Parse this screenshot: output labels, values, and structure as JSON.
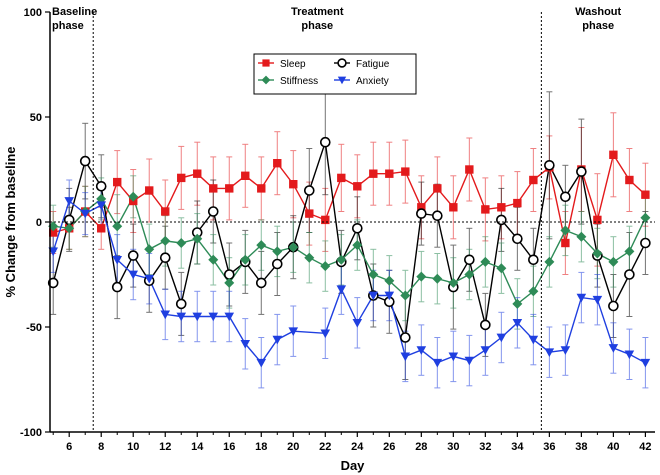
{
  "chart_data": {
    "type": "line",
    "xlabel": "Day",
    "ylabel": "% Change from baseline",
    "xlim": [
      4.8,
      42.6
    ],
    "ylim": [
      -100,
      100
    ],
    "yticks": [
      -100,
      -50,
      0,
      50,
      100
    ],
    "xticks": [
      6,
      8,
      10,
      12,
      14,
      16,
      18,
      20,
      22,
      24,
      26,
      28,
      30,
      32,
      34,
      36,
      38,
      40,
      42
    ],
    "phases": [
      {
        "label_line1": "Baseline",
        "label_line2": "phase",
        "start": 4.8,
        "end": 7.5
      },
      {
        "label_line1": "Treatment",
        "label_line2": "phase",
        "start": 7.5,
        "end": 35.5
      },
      {
        "label_line1": "Washout",
        "label_line2": "phase",
        "start": 35.5,
        "end": 42.6
      }
    ],
    "phase_boundaries": [
      7.5,
      35.5
    ],
    "zero_line": true,
    "legend_position": "top-center",
    "x": [
      5,
      6,
      7,
      8,
      9,
      10,
      11,
      12,
      13,
      14,
      15,
      16,
      17,
      18,
      19,
      20,
      21,
      22,
      23,
      24,
      25,
      26,
      27,
      28,
      29,
      30,
      31,
      32,
      33,
      34,
      35,
      36,
      37,
      38,
      39,
      40,
      41,
      42
    ],
    "series": [
      {
        "name": "Sleep",
        "marker": "square",
        "color": "#e31a1c",
        "values": [
          -5,
          -3,
          5,
          -3,
          19,
          10,
          15,
          5,
          21,
          23,
          16,
          16,
          22,
          16,
          28,
          18,
          4,
          1,
          21,
          17,
          23,
          23,
          24,
          7,
          16,
          7,
          25,
          6,
          7,
          9,
          20,
          26,
          -10,
          25,
          1,
          32,
          20,
          13
        ],
        "errors": [
          10,
          10,
          12,
          10,
          15,
          15,
          15,
          15,
          15,
          15,
          15,
          15,
          15,
          15,
          15,
          16,
          15,
          15,
          16,
          15,
          15,
          15,
          15,
          15,
          15,
          15,
          15,
          15,
          15,
          15,
          15,
          15,
          15,
          20,
          22,
          20,
          15,
          15
        ]
      },
      {
        "name": "Fatigue",
        "marker": "circle-open",
        "color": "#000000",
        "values": [
          -29,
          1,
          29,
          17,
          -31,
          -16,
          -28,
          -17,
          -39,
          -5,
          5,
          -25,
          -19,
          -29,
          -20,
          -12,
          15,
          38,
          -19,
          -3,
          -35,
          -38,
          -55,
          4,
          3,
          -31,
          -18,
          -49,
          1,
          -8,
          -18,
          27,
          12,
          24,
          -16,
          -40,
          -25,
          -10
        ],
        "errors": [
          15,
          15,
          18,
          15,
          15,
          15,
          15,
          15,
          15,
          15,
          15,
          15,
          15,
          15,
          15,
          15,
          20,
          25,
          15,
          15,
          15,
          15,
          20,
          15,
          15,
          20,
          15,
          15,
          15,
          15,
          15,
          35,
          15,
          25,
          15,
          15,
          20,
          15
        ]
      },
      {
        "name": "Stiffness",
        "marker": "diamond",
        "color": "#2e8b57",
        "values": [
          -2,
          -3,
          5,
          11,
          -2,
          12,
          -13,
          -9,
          -10,
          -8,
          -18,
          -29,
          -18,
          -11,
          -14,
          -12,
          -17,
          -21,
          -18,
          -11,
          -25,
          -28,
          -35,
          -26,
          -27,
          -29,
          -25,
          -19,
          -22,
          -39,
          -33,
          -19,
          -4,
          -7,
          -15,
          -19,
          -14,
          2
        ],
        "errors": [
          10,
          10,
          12,
          10,
          15,
          10,
          12,
          12,
          12,
          12,
          12,
          12,
          12,
          12,
          12,
          12,
          12,
          12,
          12,
          12,
          12,
          12,
          12,
          12,
          12,
          12,
          12,
          12,
          12,
          12,
          12,
          12,
          12,
          12,
          12,
          12,
          12,
          12
        ]
      },
      {
        "name": "Anxiety",
        "marker": "triangle-down",
        "color": "#1f3fe0",
        "values": [
          -14,
          10,
          4,
          8,
          -18,
          -25,
          -27,
          -44,
          -45,
          -45,
          -45,
          -45,
          -58,
          -67,
          -56,
          -52,
          null,
          -53,
          -32,
          -48,
          -35,
          -35,
          -64,
          -61,
          -67,
          -64,
          -66,
          -61,
          -55,
          -48,
          -56,
          -62,
          -61,
          -36,
          -37,
          -60,
          -63,
          -67
        ],
        "errors": [
          10,
          10,
          10,
          10,
          12,
          12,
          12,
          12,
          12,
          12,
          12,
          12,
          12,
          12,
          12,
          12,
          null,
          12,
          12,
          12,
          12,
          12,
          12,
          12,
          12,
          12,
          12,
          12,
          12,
          12,
          12,
          12,
          12,
          12,
          12,
          12,
          12,
          12
        ]
      }
    ]
  }
}
